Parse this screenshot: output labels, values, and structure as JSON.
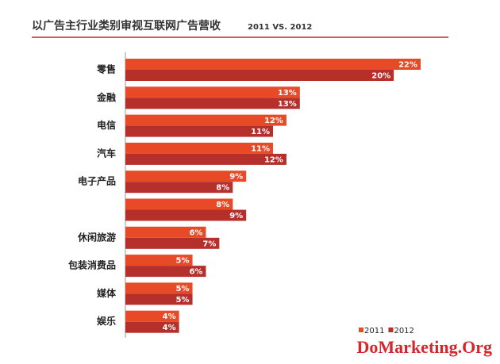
{
  "chart_data": {
    "type": "barh",
    "title": "以广告主行业类别审视互联网广告营收",
    "subtitle": "2011 VS. 2012",
    "categories": [
      "零售",
      "金融",
      "电信",
      "汽车",
      "电子产品",
      null,
      "休闲旅游",
      "包装消费品",
      "媒体",
      "娱乐"
    ],
    "series": [
      {
        "name": "2011",
        "color": "#e84a27",
        "values": [
          22,
          13,
          12,
          11,
          9,
          8,
          6,
          5,
          5,
          4
        ],
        "value_labels": [
          "22%",
          "13%",
          "12%",
          "11%",
          "9%",
          "8%",
          "6%",
          "5%",
          "5%",
          "4%"
        ]
      },
      {
        "name": "2012",
        "color": "#b5302b",
        "values": [
          20,
          13,
          11,
          12,
          8,
          9,
          7,
          6,
          5,
          4
        ],
        "value_labels": [
          "20%",
          "13%",
          "11%",
          "12%",
          "8%",
          "9%",
          "7%",
          "6%",
          "5%",
          "4%"
        ]
      }
    ],
    "legend": "lower right",
    "watermark": "DoMarketing.Org"
  }
}
